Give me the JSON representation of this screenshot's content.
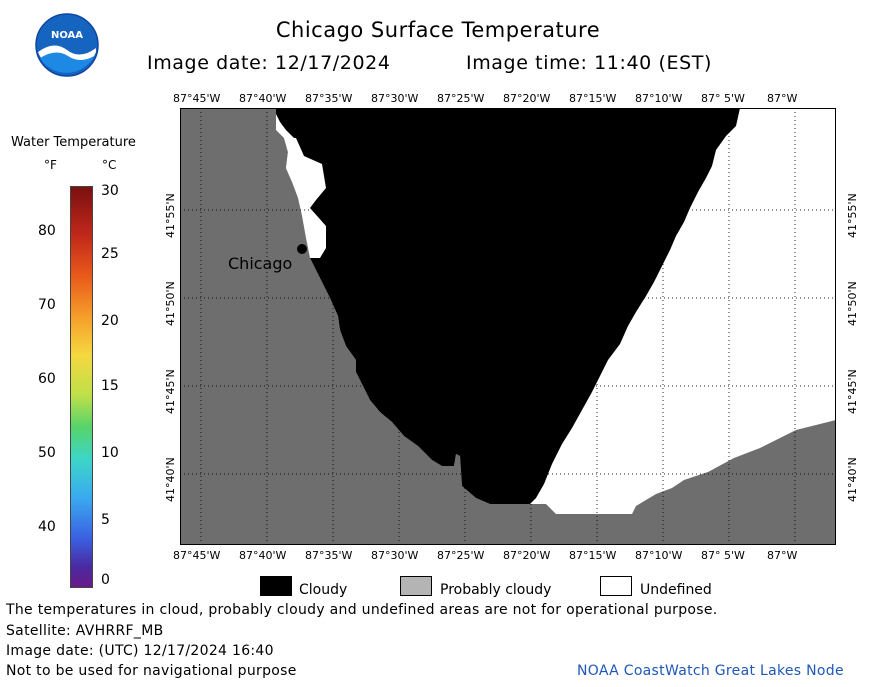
{
  "header": {
    "title": "Chicago Surface Temperature",
    "image_date": "Image date: 12/17/2024",
    "image_time": "Image time: 11:40 (EST)"
  },
  "logo": {
    "text": "NOAA"
  },
  "colorbar": {
    "title": "Water Temperature",
    "unit_f": "°F",
    "unit_c": "°C",
    "f_ticks": [
      "80",
      "70",
      "60",
      "50",
      "40"
    ],
    "c_ticks": [
      "30",
      "25",
      "20",
      "15",
      "10",
      "5",
      "0"
    ]
  },
  "map": {
    "lon_top": [
      "87°45'W",
      "87°40'W",
      "87°35'W",
      "87°30'W",
      "87°25'W",
      "87°20'W",
      "87°15'W",
      "87°10'W",
      "87° 5'W",
      "87°W"
    ],
    "lon_bottom": [
      "87°45'W",
      "87°40'W",
      "87°35'W",
      "87°30'W",
      "87°25'W",
      "87°20'W",
      "87°15'W",
      "87°10'W",
      "87° 5'W",
      "87°W"
    ],
    "lat_left": [
      "41°55'N",
      "41°50'N",
      "41°45'N",
      "41°40'N"
    ],
    "lat_right": [
      "41°55'N",
      "41°50'N",
      "41°45'N",
      "41°40'N"
    ],
    "city_label": "Chicago",
    "colors": {
      "land": "#6e6e6e",
      "cloudy": "#000000",
      "undefined": "#ffffff",
      "probably_cloudy": "#b4b4b4"
    }
  },
  "legend": {
    "cloudy": "Cloudy",
    "probably_cloudy": "Probably cloudy",
    "undefined": "Undefined"
  },
  "footer": {
    "disclaimer": "The temperatures in cloud, probably cloudy and undefined areas are not for operational purpose.",
    "satellite": "Satellite: AVHRRF_MB",
    "utc_date": "Image date: (UTC) 12/17/2024  16:40",
    "nav_warning": "Not to be used for navigational purpose",
    "credit": "NOAA CoastWatch Great Lakes Node"
  }
}
